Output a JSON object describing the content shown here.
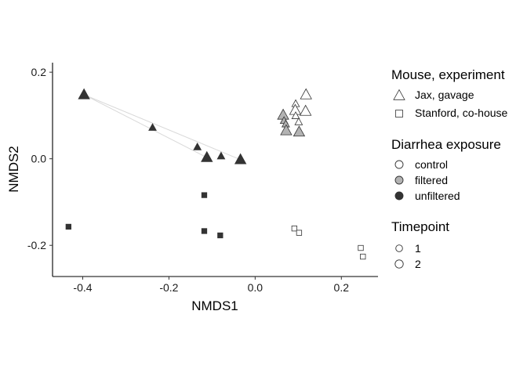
{
  "chart_data": {
    "type": "scatter",
    "xlabel": "NMDS1",
    "ylabel": "NMDS2",
    "xlim": [
      -0.47,
      0.285
    ],
    "ylim": [
      -0.272,
      0.222
    ],
    "x_ticks": [
      {
        "value": -0.4,
        "label": "-0.4"
      },
      {
        "value": -0.2,
        "label": "-0.2"
      },
      {
        "value": 0.0,
        "label": "0.0"
      },
      {
        "value": 0.2,
        "label": "0.2"
      }
    ],
    "y_ticks": [
      {
        "value": 0.2,
        "label": "0.2"
      },
      {
        "value": 0.0,
        "label": "0.0"
      },
      {
        "value": -0.2,
        "label": "-0.2"
      }
    ],
    "grid": false,
    "legend_position": "right",
    "colors": {
      "control": "#ffffff",
      "filtered": "#b3b3b3",
      "unfiltered": "#333333",
      "outline": "#333333",
      "segment": "#d9d9d9"
    },
    "legends": [
      {
        "title": "Mouse, experiment",
        "items": [
          {
            "label": "Jax, gavage",
            "shape": "triangle"
          },
          {
            "label": "Stanford, co-house",
            "shape": "square"
          }
        ]
      },
      {
        "title": "Diarrhea exposure",
        "items": [
          {
            "label": "control",
            "fill": "control"
          },
          {
            "label": "filtered",
            "fill": "filtered"
          },
          {
            "label": "unfiltered",
            "fill": "unfiltered"
          }
        ]
      },
      {
        "title": "Timepoint",
        "items": [
          {
            "label": "1",
            "size": 1
          },
          {
            "label": "2",
            "size": 2
          }
        ]
      }
    ],
    "points": [
      {
        "x": -0.397,
        "y": 0.148,
        "shape": "triangle",
        "exposure": "unfiltered",
        "timepoint": 2
      },
      {
        "x": -0.238,
        "y": 0.072,
        "shape": "triangle",
        "exposure": "unfiltered",
        "timepoint": 1
      },
      {
        "x": -0.134,
        "y": 0.027,
        "shape": "triangle",
        "exposure": "unfiltered",
        "timepoint": 1
      },
      {
        "x": -0.112,
        "y": 0.003,
        "shape": "triangle",
        "exposure": "unfiltered",
        "timepoint": 2
      },
      {
        "x": -0.079,
        "y": 0.006,
        "shape": "triangle",
        "exposure": "unfiltered",
        "timepoint": 1
      },
      {
        "x": -0.034,
        "y": -0.002,
        "shape": "triangle",
        "exposure": "unfiltered",
        "timepoint": 2
      },
      {
        "x": 0.065,
        "y": 0.101,
        "shape": "triangle",
        "exposure": "filtered",
        "timepoint": 2
      },
      {
        "x": 0.067,
        "y": 0.088,
        "shape": "triangle",
        "exposure": "filtered",
        "timepoint": 1
      },
      {
        "x": 0.071,
        "y": 0.08,
        "shape": "triangle",
        "exposure": "filtered",
        "timepoint": 1
      },
      {
        "x": 0.072,
        "y": 0.065,
        "shape": "triangle",
        "exposure": "filtered",
        "timepoint": 2
      },
      {
        "x": 0.102,
        "y": 0.062,
        "shape": "triangle",
        "exposure": "filtered",
        "timepoint": 2
      },
      {
        "x": 0.094,
        "y": 0.127,
        "shape": "triangle",
        "exposure": "control",
        "timepoint": 1
      },
      {
        "x": 0.093,
        "y": 0.112,
        "shape": "triangle",
        "exposure": "control",
        "timepoint": 2
      },
      {
        "x": 0.094,
        "y": 0.099,
        "shape": "triangle",
        "exposure": "control",
        "timepoint": 1
      },
      {
        "x": 0.101,
        "y": 0.085,
        "shape": "triangle",
        "exposure": "control",
        "timepoint": 1
      },
      {
        "x": 0.118,
        "y": 0.148,
        "shape": "triangle",
        "exposure": "control",
        "timepoint": 2
      },
      {
        "x": 0.117,
        "y": 0.11,
        "shape": "triangle",
        "exposure": "control",
        "timepoint": 2
      },
      {
        "x": -0.118,
        "y": -0.084,
        "shape": "square",
        "exposure": "unfiltered",
        "timepoint": 1
      },
      {
        "x": -0.433,
        "y": -0.157,
        "shape": "square",
        "exposure": "unfiltered",
        "timepoint": 1
      },
      {
        "x": -0.118,
        "y": -0.167,
        "shape": "square",
        "exposure": "unfiltered",
        "timepoint": 1
      },
      {
        "x": -0.081,
        "y": -0.177,
        "shape": "square",
        "exposure": "unfiltered",
        "timepoint": 1
      },
      {
        "x": 0.091,
        "y": -0.161,
        "shape": "square",
        "exposure": "control",
        "timepoint": 1
      },
      {
        "x": 0.102,
        "y": -0.171,
        "shape": "square",
        "exposure": "control",
        "timepoint": 1
      },
      {
        "x": 0.245,
        "y": -0.206,
        "shape": "square",
        "exposure": "control",
        "timepoint": 1
      },
      {
        "x": 0.25,
        "y": -0.226,
        "shape": "square",
        "exposure": "control",
        "timepoint": 1
      }
    ],
    "segments": [
      {
        "from": [
          -0.397,
          0.148
        ],
        "to": [
          -0.112,
          0.003
        ]
      },
      {
        "from": [
          -0.397,
          0.148
        ],
        "to": [
          -0.034,
          -0.002
        ]
      }
    ]
  }
}
